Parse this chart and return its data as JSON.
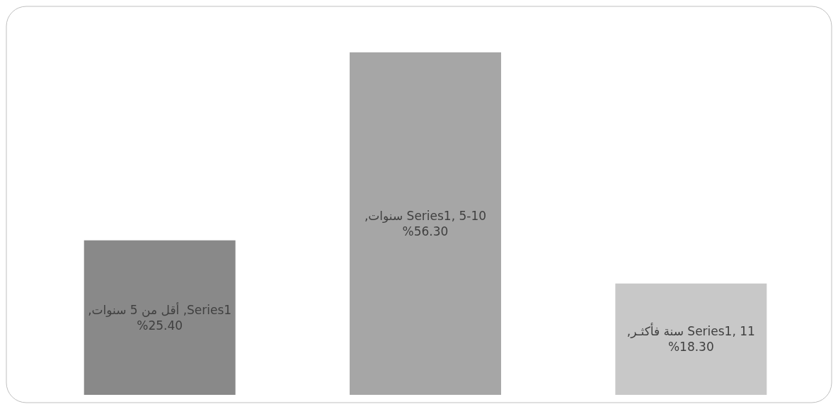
{
  "chart_data": {
    "type": "bar",
    "categories": [
      null,
      null,
      null
    ],
    "values": [
      25.4,
      56.3,
      18.3
    ],
    "colors": [
      "#898989",
      "#a6a6a6",
      "#c8c8c8"
    ],
    "value_labels": [
      "Series1, أقل من 5 سنوات, 25.40%",
      "Series1, 5-10 سنوات, 56.30%",
      "Series1, 11 سنة فأكثـر, 18.30%"
    ]
  }
}
